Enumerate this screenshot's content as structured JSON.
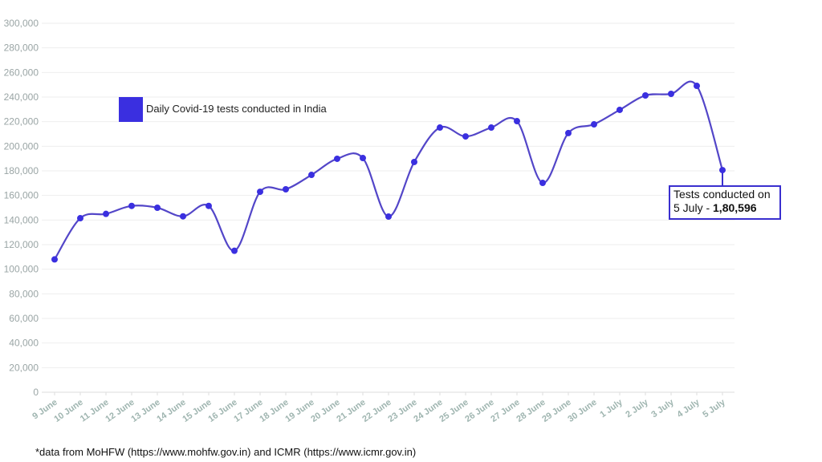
{
  "chart_data": {
    "type": "line",
    "categories": [
      "9 June",
      "10 June",
      "11 June",
      "12 June",
      "13 June",
      "14 June",
      "15 June",
      "16 June",
      "17 June",
      "18 June",
      "19 June",
      "20 June",
      "21 June",
      "22 June",
      "23 June",
      "24 June",
      "25 June",
      "26 June",
      "27 June",
      "28 June",
      "29 June",
      "30 June",
      "1 July",
      "2 July",
      "3 July",
      "4 July",
      "5 July"
    ],
    "series": [
      {
        "name": "Daily Covid-19 tests conducted in India",
        "values": [
          108000,
          141500,
          145000,
          151500,
          150000,
          143000,
          151500,
          115000,
          163000,
          165000,
          176700,
          189800,
          190400,
          142800,
          187200,
          215200,
          208000,
          215200,
          220400,
          170200,
          210700,
          217800,
          229600,
          241300,
          242600,
          249100,
          180596
        ]
      }
    ],
    "ylim": [
      0,
      300000
    ],
    "yticks": [
      "0",
      "20,000",
      "40,000",
      "60,000",
      "80,000",
      "100,000",
      "120,000",
      "140,000",
      "160,000",
      "180,000",
      "200,000",
      "220,000",
      "240,000",
      "260,000",
      "280,000",
      "300,000"
    ],
    "grid": true,
    "legend_position": "top-left",
    "colors": {
      "line": "#5346c8",
      "marker": "#3a2fe0",
      "annotation_border": "#3a2fcf"
    },
    "annotation": {
      "line1": "Tests conducted on",
      "prefix": "5 July - ",
      "value": "1,80,596"
    }
  },
  "footnote": "*data from MoHFW (https://www.mohfw.gov.in) and ICMR (https://www.icmr.gov.in)"
}
